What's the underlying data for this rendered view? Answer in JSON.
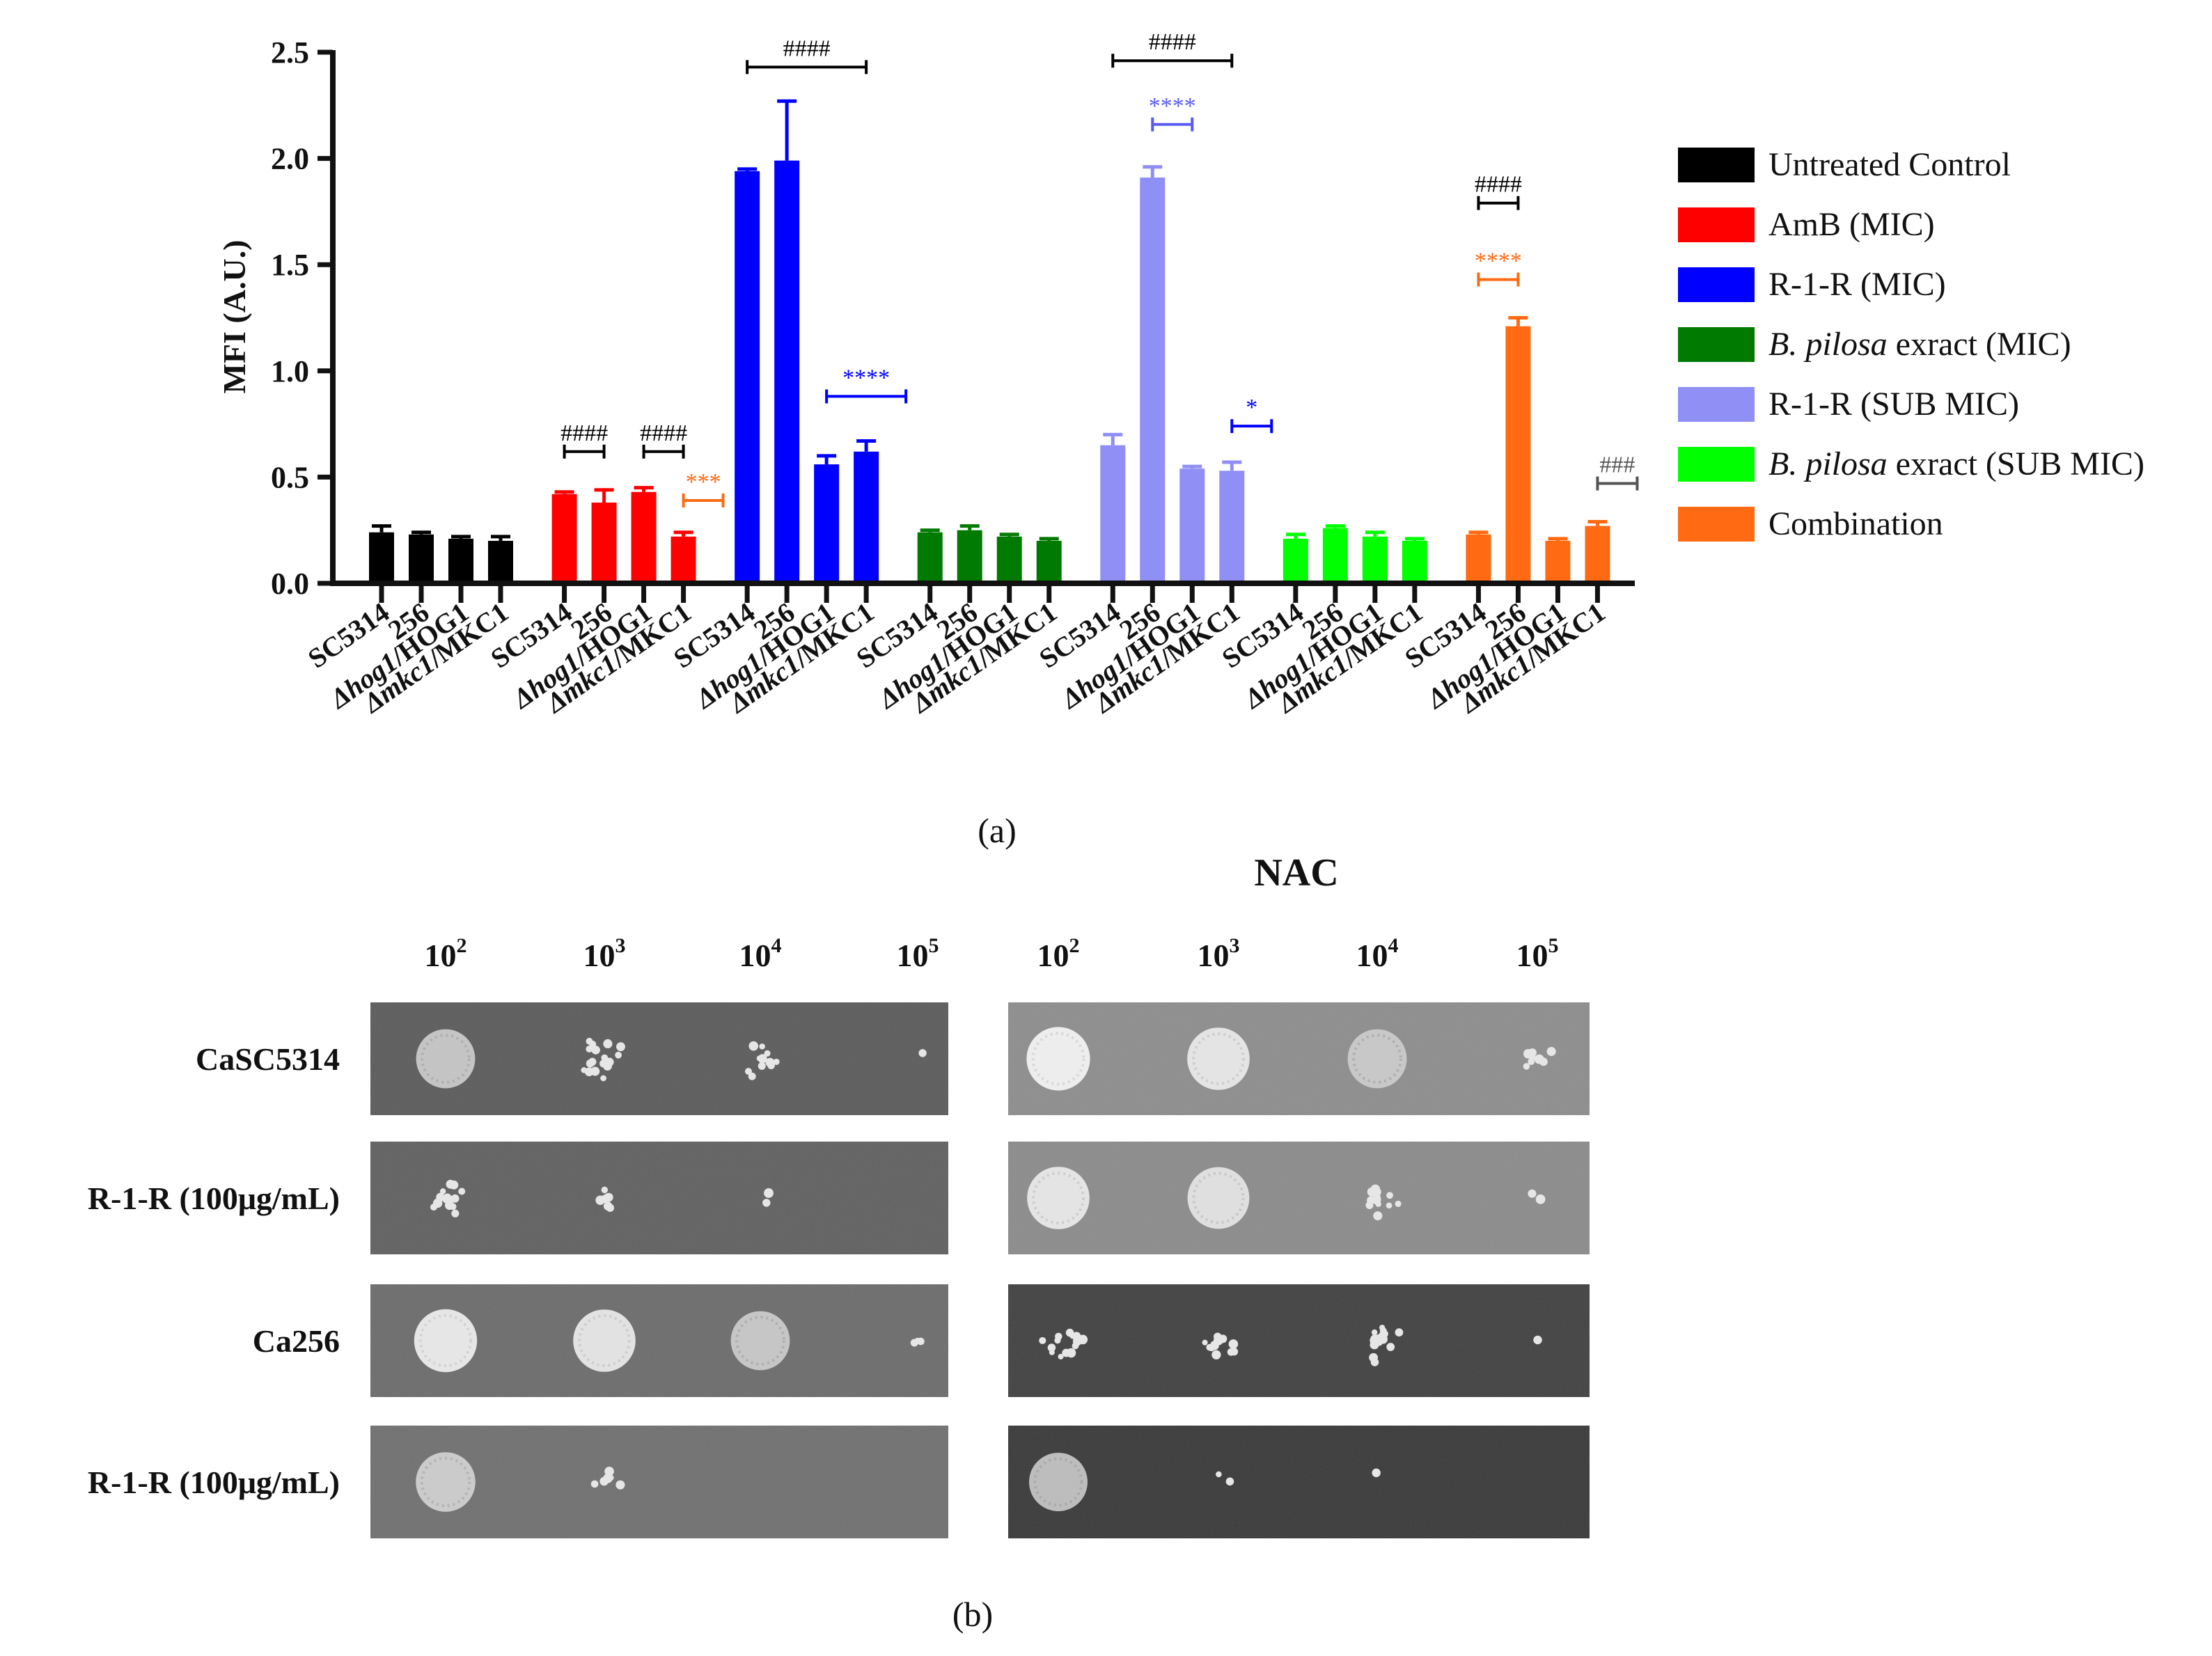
{
  "chart_data": {
    "type": "bar",
    "title": "",
    "xlabel": "",
    "ylabel": "MFI (A.U.)",
    "ylim": [
      0,
      2.5
    ],
    "yticks": [
      "0.0",
      "0.5",
      "1.0",
      "1.5",
      "2.0",
      "2.5"
    ],
    "legend_position": "right",
    "categories": [
      "SC5314",
      "256",
      "Δhog1/HOG1",
      "Δmkc1/MKC1"
    ],
    "category_parts": [
      {
        "prefix": "",
        "italic": "",
        "suffix": "SC5314"
      },
      {
        "prefix": "",
        "italic": "",
        "suffix": "256"
      },
      {
        "prefix": "Δ",
        "italic": "hog1",
        "suffix": "/HOG1"
      },
      {
        "prefix": "Δ",
        "italic": "mkc1",
        "suffix": "/MKC1"
      }
    ],
    "series": [
      {
        "name": "Untreated Control",
        "name_italic": "",
        "name_rest": "Untreated Control",
        "color": "#000000",
        "values": [
          0.24,
          0.23,
          0.21,
          0.2
        ],
        "errors": [
          0.03,
          0.01,
          0.01,
          0.02
        ]
      },
      {
        "name": "AmB (MIC)",
        "name_italic": "",
        "name_rest": "AmB (MIC)",
        "color": "#ff0000",
        "values": [
          0.42,
          0.38,
          0.43,
          0.22
        ],
        "errors": [
          0.01,
          0.06,
          0.02,
          0.02
        ]
      },
      {
        "name": "R-1-R (MIC)",
        "name_italic": "",
        "name_rest": "R-1-R (MIC)",
        "color": "#0000ff",
        "values": [
          1.94,
          1.99,
          0.56,
          0.62
        ],
        "errors": [
          0.01,
          0.28,
          0.04,
          0.05
        ]
      },
      {
        "name": "B. pilosa exract (MIC)",
        "name_italic": "B. pilosa",
        "name_rest": " exract (MIC)",
        "color": "#007a00",
        "values": [
          0.24,
          0.25,
          0.22,
          0.2
        ],
        "errors": [
          0.01,
          0.02,
          0.01,
          0.01
        ]
      },
      {
        "name": "R-1-R (SUB MIC)",
        "name_italic": "",
        "name_rest": "R-1-R (SUB MIC)",
        "color": "#8f8ff5",
        "values": [
          0.65,
          1.91,
          0.54,
          0.53
        ],
        "errors": [
          0.05,
          0.05,
          0.01,
          0.04
        ]
      },
      {
        "name": "B. pilosa exract (SUB MIC)",
        "name_italic": "B. pilosa",
        "name_rest": " exract (SUB MIC)",
        "color": "#00ff00",
        "values": [
          0.21,
          0.26,
          0.22,
          0.2
        ],
        "errors": [
          0.02,
          0.01,
          0.02,
          0.01
        ]
      },
      {
        "name": "Combination",
        "name_italic": "",
        "name_rest": "Combination",
        "color": "#ff6a13",
        "values": [
          0.23,
          1.21,
          0.2,
          0.27
        ],
        "errors": [
          0.01,
          0.04,
          0.01,
          0.02
        ]
      }
    ],
    "annotations": [
      {
        "text": "####",
        "color": "#000000",
        "group": 1,
        "from": 0,
        "to": 1,
        "y": 0.62
      },
      {
        "text": "####",
        "color": "#000000",
        "group": 1,
        "from": 2,
        "to": 3,
        "y": 0.62
      },
      {
        "text": "***",
        "color": "#ff6a13",
        "group": 1,
        "from": 3,
        "to": 4,
        "y": 0.39
      },
      {
        "text": "####",
        "color": "#000000",
        "group": 2,
        "from": 0,
        "to": 3,
        "y": 2.43
      },
      {
        "text": "****",
        "color": "#0000ff",
        "group": 2,
        "from": 2,
        "to": 4,
        "y": 0.88
      },
      {
        "text": "####",
        "color": "#000000",
        "group": 4,
        "from": 0,
        "to": 3,
        "y": 2.46
      },
      {
        "text": "****",
        "color": "#5a5af5",
        "group": 4,
        "from": 1,
        "to": 2,
        "y": 2.16
      },
      {
        "text": "*",
        "color": "#0000ff",
        "group": 4,
        "from": 3,
        "to": 4,
        "y": 0.74
      },
      {
        "text": "####",
        "color": "#000000",
        "group": 6,
        "from": 0,
        "to": 1,
        "y": 1.79
      },
      {
        "text": "****",
        "color": "#ff6a13",
        "group": 6,
        "from": 0,
        "to": 1,
        "y": 1.43
      },
      {
        "text": "###",
        "color": "#555555",
        "group": 6,
        "from": 3,
        "to": 4,
        "y": 0.47
      }
    ]
  },
  "panel_a_label": "(a)",
  "panel_b_label": "(b)",
  "panel_b": {
    "condition_header": "NAC",
    "dilutions": [
      {
        "base": "10",
        "exp": "2"
      },
      {
        "base": "10",
        "exp": "3"
      },
      {
        "base": "10",
        "exp": "4"
      },
      {
        "base": "10",
        "exp": "5"
      }
    ],
    "rows": [
      {
        "label": "CaSC5314",
        "left_bg": "#595959",
        "right_bg": "#8c8c8c",
        "left_spots": [
          0.55,
          0.45,
          0.3,
          0.03
        ],
        "right_spots": [
          0.95,
          0.85,
          0.55,
          0.2
        ]
      },
      {
        "label": "R-1-R (100μg/mL)",
        "left_bg": "#5e5e5e",
        "right_bg": "#8a8a8a",
        "left_spots": [
          0.35,
          0.2,
          0.05,
          0.0
        ],
        "right_spots": [
          0.85,
          0.8,
          0.3,
          0.05
        ]
      },
      {
        "label": "Ca256",
        "left_bg": "#6a6a6a",
        "right_bg": "#3e3e3e",
        "left_spots": [
          0.9,
          0.85,
          0.55,
          0.08
        ],
        "right_spots": [
          0.35,
          0.35,
          0.4,
          0.02
        ]
      },
      {
        "label": "R-1-R (100μg/mL)",
        "left_bg": "#6e6e6e",
        "right_bg": "#363636",
        "left_spots": [
          0.6,
          0.15,
          0.0,
          0.0
        ],
        "right_spots": [
          0.5,
          0.05,
          0.02,
          0.0
        ]
      }
    ]
  }
}
